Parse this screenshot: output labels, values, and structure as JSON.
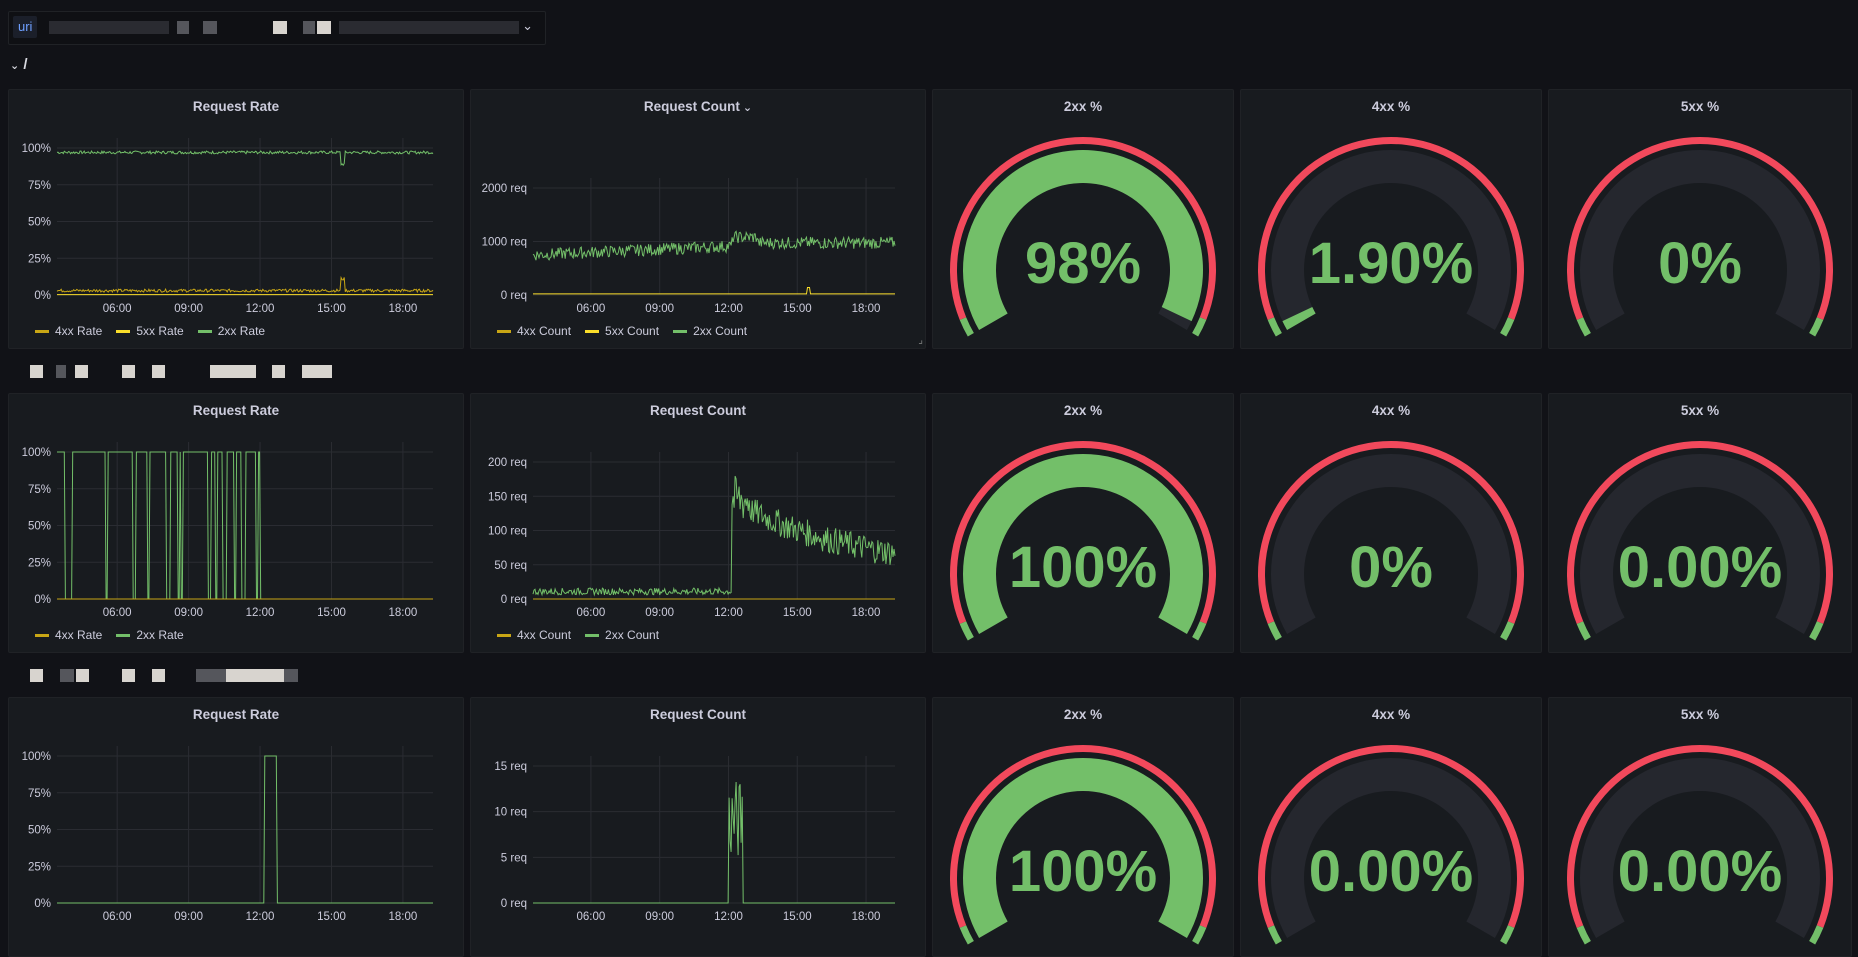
{
  "variable": {
    "label": "uri",
    "value_redacted": true
  },
  "row_title": "/",
  "colors": {
    "green": "#73bf69",
    "red": "#f2495c",
    "yellow_dark": "#c8a615",
    "yellow": "#fade2a",
    "gauge_bg": "#25272e",
    "grid": "#2a2c32"
  },
  "rows": [
    {
      "rate_panel": {
        "title": "Request Rate",
        "y_ticks": [
          "100%",
          "75%",
          "50%",
          "25%",
          "0%"
        ],
        "x_ticks": [
          "06:00",
          "09:00",
          "12:00",
          "15:00",
          "18:00"
        ],
        "legend": [
          {
            "label": "4xx Rate",
            "color": "#c8a615"
          },
          {
            "label": "5xx Rate",
            "color": "#fade2a"
          },
          {
            "label": "2xx Rate",
            "color": "#73bf69"
          }
        ]
      },
      "count_panel": {
        "title": "Request Count",
        "has_menu": true,
        "y_ticks": [
          "2000 req",
          "1000 req",
          "0 req"
        ],
        "x_ticks": [
          "06:00",
          "09:00",
          "12:00",
          "15:00",
          "18:00"
        ],
        "legend": [
          {
            "label": "4xx Count",
            "color": "#c8a615"
          },
          {
            "label": "5xx Count",
            "color": "#fade2a"
          },
          {
            "label": "2xx Count",
            "color": "#73bf69"
          }
        ]
      },
      "gauges": [
        {
          "title": "2xx %",
          "value": "98%",
          "fraction": 0.98
        },
        {
          "title": "4xx %",
          "value": "1.90%",
          "fraction": 0.019
        },
        {
          "title": "5xx %",
          "value": "0%",
          "fraction": 0
        }
      ]
    },
    {
      "rate_panel": {
        "title": "Request Rate",
        "y_ticks": [
          "100%",
          "75%",
          "50%",
          "25%",
          "0%"
        ],
        "x_ticks": [
          "06:00",
          "09:00",
          "12:00",
          "15:00",
          "18:00"
        ],
        "legend": [
          {
            "label": "4xx Rate",
            "color": "#c8a615"
          },
          {
            "label": "2xx Rate",
            "color": "#73bf69"
          }
        ]
      },
      "count_panel": {
        "title": "Request Count",
        "has_menu": false,
        "y_ticks": [
          "200 req",
          "150 req",
          "100 req",
          "50 req",
          "0 req"
        ],
        "x_ticks": [
          "06:00",
          "09:00",
          "12:00",
          "15:00",
          "18:00"
        ],
        "legend": [
          {
            "label": "4xx Count",
            "color": "#c8a615"
          },
          {
            "label": "2xx Count",
            "color": "#73bf69"
          }
        ]
      },
      "gauges": [
        {
          "title": "2xx %",
          "value": "100%",
          "fraction": 1.0
        },
        {
          "title": "4xx %",
          "value": "0%",
          "fraction": 0
        },
        {
          "title": "5xx %",
          "value": "0.00%",
          "fraction": 0
        }
      ]
    },
    {
      "rate_panel": {
        "title": "Request Rate",
        "y_ticks": [
          "100%",
          "75%",
          "50%",
          "25%",
          "0%"
        ],
        "x_ticks": [
          "06:00",
          "09:00",
          "12:00",
          "15:00",
          "18:00"
        ],
        "legend": []
      },
      "count_panel": {
        "title": "Request Count",
        "has_menu": false,
        "y_ticks": [
          "15 req",
          "10 req",
          "5 req",
          "0 req"
        ],
        "x_ticks": [
          "06:00",
          "09:00",
          "12:00",
          "15:00",
          "18:00"
        ],
        "legend": []
      },
      "gauges": [
        {
          "title": "2xx %",
          "value": "100%",
          "fraction": 1.0
        },
        {
          "title": "4xx %",
          "value": "0.00%",
          "fraction": 0
        },
        {
          "title": "5xx %",
          "value": "0.00%",
          "fraction": 0
        }
      ]
    }
  ]
}
